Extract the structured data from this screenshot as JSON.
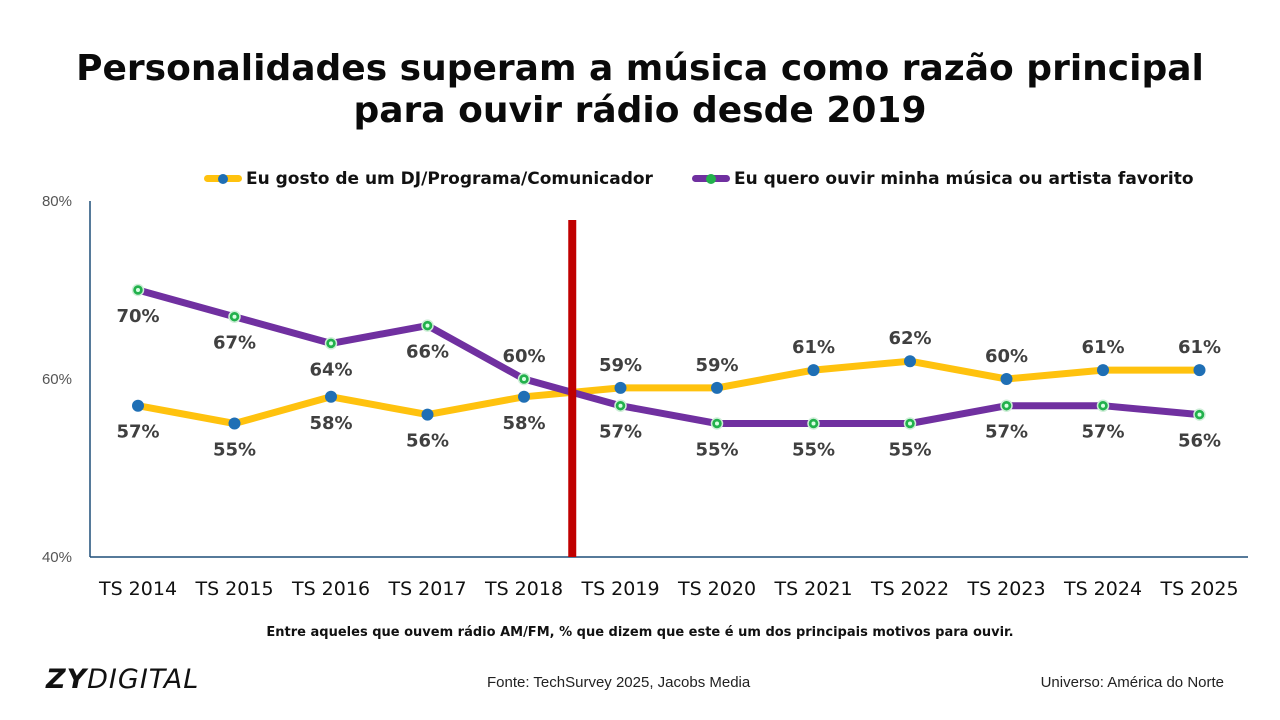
{
  "title_line1": "Personalidades superam a música como razão principal",
  "title_line2": "para ouvir rádio desde 2019",
  "subtitle": "Entre aqueles que ouvem rádio AM/FM, % que dizem que este é um dos principais motivos para ouvir.",
  "source": "Fonte: TechSurvey 2025, Jacobs Media",
  "universe": "Universo: América do Norte",
  "logo": {
    "bold": "ZY",
    "light": "DIGITAL"
  },
  "colors": {
    "yellow": "#FFC20E",
    "purple": "#7030A0",
    "blue_marker": "#1F6FB5",
    "green_marker": "#22B14C",
    "divider": "#C00000",
    "axis": "#1F4E79"
  },
  "chart_data": {
    "type": "line",
    "title": "Personalidades superam a música como razão principal para ouvir rádio desde 2019",
    "categories": [
      "TS 2014",
      "TS 2015",
      "TS 2016",
      "TS 2017",
      "TS 2018",
      "TS 2019",
      "TS 2020",
      "TS 2021",
      "TS 2022",
      "TS 2023",
      "TS 2024",
      "TS 2025"
    ],
    "series": [
      {
        "name": "Eu gosto de um DJ/Programa/Comunicador",
        "color": "#FFC20E",
        "marker": "#1F6FB5",
        "values": [
          57,
          55,
          58,
          56,
          58,
          59,
          59,
          61,
          62,
          60,
          61,
          61
        ],
        "labels": [
          "57%",
          "55%",
          "58%",
          "56%",
          "58%",
          "59%",
          "59%",
          "61%",
          "62%",
          "60%",
          "61%",
          "61%"
        ],
        "label_pos": [
          "below",
          "below",
          "below",
          "below",
          "below",
          "above",
          "above",
          "above",
          "above",
          "above",
          "above",
          "above"
        ]
      },
      {
        "name": "Eu quero ouvir minha música ou artista favorito",
        "color": "#7030A0",
        "marker": "#22B14C",
        "values": [
          70,
          67,
          64,
          66,
          60,
          57,
          55,
          55,
          55,
          57,
          57,
          56
        ],
        "labels": [
          "70%",
          "67%",
          "64%",
          "66%",
          "60%",
          "57%",
          "55%",
          "55%",
          "55%",
          "57%",
          "57%",
          "56%"
        ],
        "label_pos": [
          "below",
          "below",
          "below",
          "below",
          "above",
          "below",
          "below",
          "below",
          "below",
          "below",
          "below",
          "below"
        ]
      }
    ],
    "y_ticks": [
      "80%",
      "60%",
      "40%"
    ],
    "ylim": [
      40,
      80
    ],
    "divider_between": [
      "TS 2018",
      "TS 2019"
    ],
    "legend_position": "top",
    "grid": false
  }
}
